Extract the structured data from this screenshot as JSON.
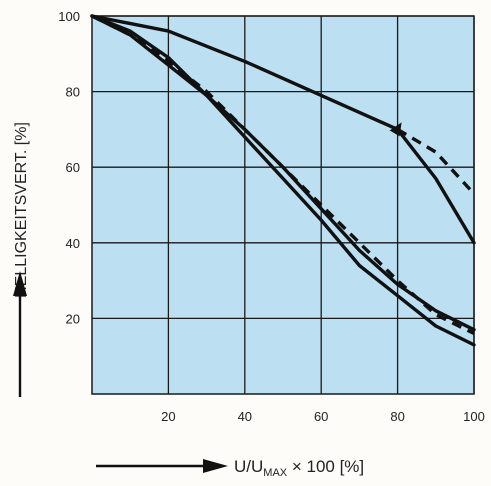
{
  "chart_data": {
    "type": "line",
    "xlabel": {
      "main": "U/U",
      "sub": "MAX",
      "tail": " × 100 [%]"
    },
    "ylabel": "HELLIGKEITSVERT. [%]",
    "xlim": [
      0,
      100
    ],
    "ylim": [
      0,
      100
    ],
    "x_ticks": [
      20,
      40,
      60,
      80,
      100
    ],
    "y_ticks": [
      20,
      40,
      60,
      80,
      100
    ],
    "grid": true,
    "colors": {
      "plot_bg": "#bcdff2",
      "line": "#111111",
      "grid": "#1a1a1a",
      "axis_text": "#222222"
    },
    "series": [
      {
        "style": "solid",
        "x": [
          0,
          20,
          40,
          60,
          80,
          90,
          100
        ],
        "y": [
          100,
          96,
          88,
          79,
          70,
          57,
          40
        ]
      },
      {
        "style": "dashed",
        "x": [
          80,
          90,
          100
        ],
        "y": [
          70,
          64,
          53
        ]
      },
      {
        "style": "solid",
        "x": [
          0,
          10,
          20,
          30,
          40,
          50,
          60,
          70,
          80,
          90,
          100
        ],
        "y": [
          100,
          96,
          89,
          79,
          68,
          57,
          46,
          34,
          26,
          18,
          13
        ]
      },
      {
        "style": "dashed",
        "x": [
          0,
          10,
          20,
          30,
          40,
          50,
          60,
          70,
          80,
          90,
          100
        ],
        "y": [
          100,
          95,
          88,
          80,
          70,
          60,
          50,
          40,
          30,
          21,
          16
        ]
      },
      {
        "style": "solid",
        "x": [
          0,
          10,
          20,
          30,
          40,
          50,
          60,
          70,
          80,
          90,
          100
        ],
        "y": [
          100,
          95,
          87,
          79,
          70,
          60,
          49,
          38,
          29,
          22,
          17
        ]
      }
    ]
  }
}
